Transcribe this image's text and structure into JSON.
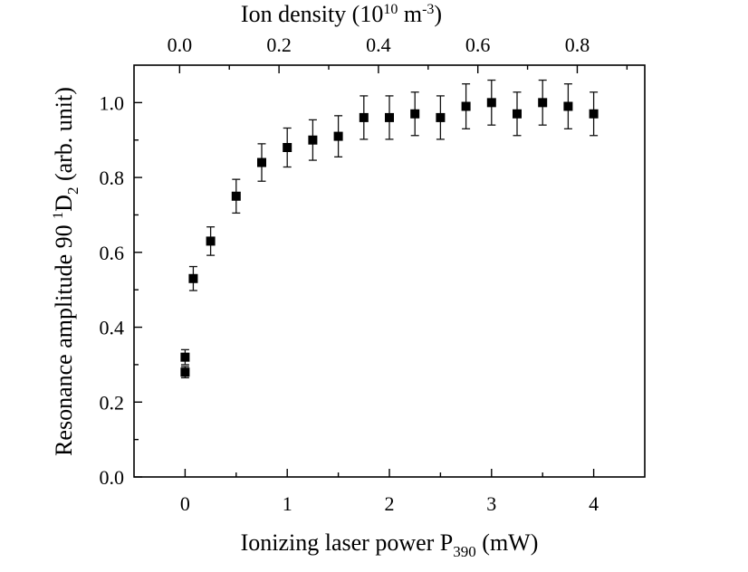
{
  "chart_data": {
    "type": "scatter",
    "title": "",
    "xlabel": {
      "main": "Ionizing laser power P",
      "sub": "390",
      "tail": " (mW)"
    },
    "ylabel": {
      "pre": "Resonance amplitude 90 ",
      "sup": "1",
      "mid": "D",
      "sub": "2",
      "tail": " (arb. unit)"
    },
    "top_xlabel": {
      "pre": "Ion density (10",
      "sup1": "10",
      "mid": " m",
      "sup2": "-3",
      "tail": ")"
    },
    "xlim": [
      -0.5,
      4.5
    ],
    "ylim": [
      0.0,
      1.1
    ],
    "top_xlim": [
      -0.0917,
      0.9358
    ],
    "x_ticks": [
      0,
      1,
      2,
      3,
      4
    ],
    "x_tick_labels": [
      "0",
      "1",
      "2",
      "3",
      "4"
    ],
    "x_minor_ticks": [
      0.5,
      1.5,
      2.5,
      3.5
    ],
    "y_ticks": [
      0.0,
      0.2,
      0.4,
      0.6,
      0.8,
      1.0
    ],
    "y_tick_labels": [
      "0.0",
      "0.2",
      "0.4",
      "0.6",
      "0.8",
      "1.0"
    ],
    "y_minor_ticks": [
      0.1,
      0.3,
      0.5,
      0.7,
      0.9
    ],
    "top_ticks": [
      0.0,
      0.2,
      0.4,
      0.6,
      0.8
    ],
    "top_tick_labels": [
      "0.0",
      "0.2",
      "0.4",
      "0.6",
      "0.8"
    ],
    "top_minor_ticks": [
      0.1,
      0.3,
      0.5,
      0.7,
      0.9
    ],
    "grid": false,
    "legend": "none",
    "series": [
      {
        "name": "resonance amplitude",
        "marker": "square",
        "color": "#000000",
        "points": [
          {
            "x": 0.0,
            "y": 0.32,
            "err": 0.02
          },
          {
            "x": 0.0,
            "y": 0.28,
            "err": 0.015
          },
          {
            "x": 0.08,
            "y": 0.53,
            "err": 0.032
          },
          {
            "x": 0.25,
            "y": 0.63,
            "err": 0.038
          },
          {
            "x": 0.5,
            "y": 0.75,
            "err": 0.045
          },
          {
            "x": 0.75,
            "y": 0.84,
            "err": 0.05
          },
          {
            "x": 1.0,
            "y": 0.88,
            "err": 0.052
          },
          {
            "x": 1.25,
            "y": 0.9,
            "err": 0.054
          },
          {
            "x": 1.5,
            "y": 0.91,
            "err": 0.055
          },
          {
            "x": 1.75,
            "y": 0.96,
            "err": 0.058
          },
          {
            "x": 2.0,
            "y": 0.96,
            "err": 0.058
          },
          {
            "x": 2.25,
            "y": 0.97,
            "err": 0.058
          },
          {
            "x": 2.5,
            "y": 0.96,
            "err": 0.058
          },
          {
            "x": 2.75,
            "y": 0.99,
            "err": 0.06
          },
          {
            "x": 3.0,
            "y": 1.0,
            "err": 0.06
          },
          {
            "x": 3.25,
            "y": 0.97,
            "err": 0.058
          },
          {
            "x": 3.5,
            "y": 1.0,
            "err": 0.06
          },
          {
            "x": 3.75,
            "y": 0.99,
            "err": 0.06
          },
          {
            "x": 4.0,
            "y": 0.97,
            "err": 0.058
          }
        ]
      }
    ]
  }
}
